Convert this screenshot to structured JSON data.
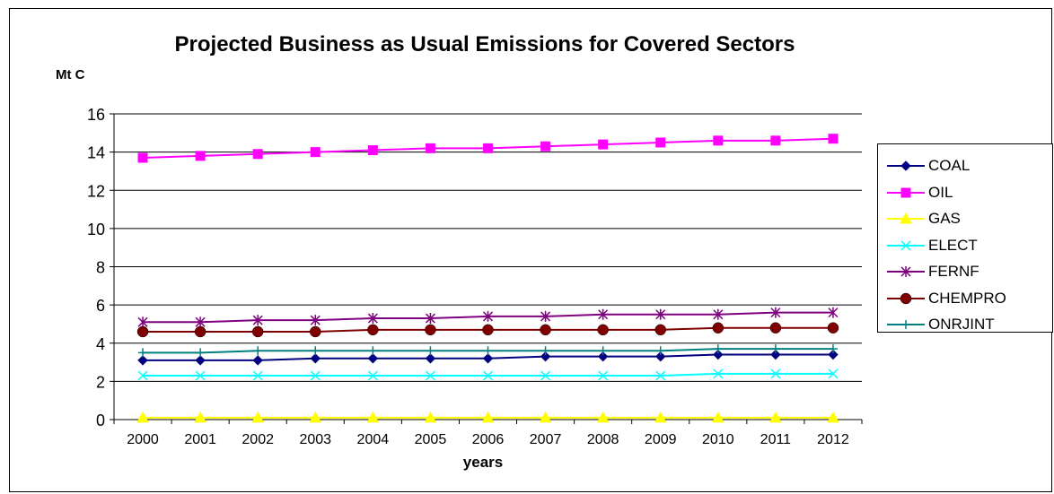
{
  "chart_data": {
    "type": "line",
    "title": "Projected Business as Usual Emissions for Covered Sectors",
    "ylabel": "Mt C",
    "xlabel": "years",
    "ylim": [
      0,
      16
    ],
    "yticks": [
      "0",
      "2",
      "4",
      "6",
      "8",
      "10",
      "12",
      "14",
      "16"
    ],
    "grid": "horizontal",
    "legend_position": "right",
    "categories": [
      "2000",
      "2001",
      "2002",
      "2003",
      "2004",
      "2005",
      "2006",
      "2007",
      "2008",
      "2009",
      "2010",
      "2011",
      "2012"
    ],
    "series": [
      {
        "name": "COAL",
        "color": "#000080",
        "marker": "diamond",
        "values": [
          3.1,
          3.1,
          3.1,
          3.2,
          3.2,
          3.2,
          3.2,
          3.3,
          3.3,
          3.3,
          3.4,
          3.4,
          3.4
        ]
      },
      {
        "name": "OIL",
        "color": "#ff00ff",
        "marker": "square",
        "values": [
          13.7,
          13.8,
          13.9,
          14.0,
          14.1,
          14.2,
          14.2,
          14.3,
          14.4,
          14.5,
          14.6,
          14.6,
          14.7
        ]
      },
      {
        "name": "GAS",
        "color": "#ffff00",
        "marker": "triangle",
        "values": [
          0.1,
          0.1,
          0.1,
          0.1,
          0.1,
          0.1,
          0.1,
          0.1,
          0.1,
          0.1,
          0.1,
          0.1,
          0.1
        ]
      },
      {
        "name": "ELECT",
        "color": "#00ffff",
        "marker": "x",
        "values": [
          2.3,
          2.3,
          2.3,
          2.3,
          2.3,
          2.3,
          2.3,
          2.3,
          2.3,
          2.3,
          2.4,
          2.4,
          2.4
        ]
      },
      {
        "name": "FERNF",
        "color": "#800080",
        "marker": "star",
        "values": [
          5.1,
          5.1,
          5.2,
          5.2,
          5.3,
          5.3,
          5.4,
          5.4,
          5.5,
          5.5,
          5.5,
          5.6,
          5.6
        ]
      },
      {
        "name": "CHEMPRO",
        "color": "#800000",
        "marker": "circle",
        "values": [
          4.6,
          4.6,
          4.6,
          4.6,
          4.7,
          4.7,
          4.7,
          4.7,
          4.7,
          4.7,
          4.8,
          4.8,
          4.8
        ]
      },
      {
        "name": "ONRJINT",
        "color": "#008080",
        "marker": "plus",
        "values": [
          3.5,
          3.5,
          3.6,
          3.6,
          3.6,
          3.6,
          3.6,
          3.6,
          3.6,
          3.6,
          3.7,
          3.7,
          3.7
        ]
      }
    ]
  }
}
